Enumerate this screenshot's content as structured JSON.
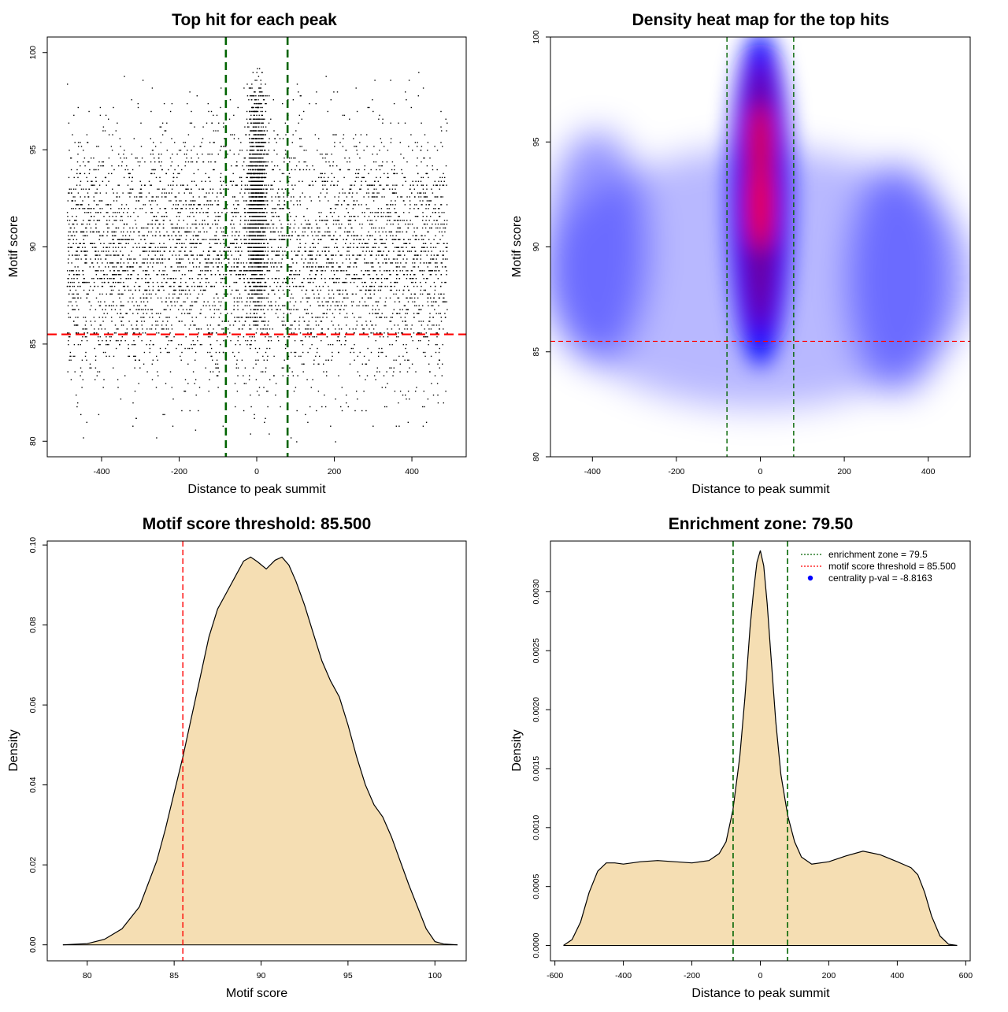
{
  "figure": {
    "background": "#ffffff",
    "colors": {
      "green_line": "#006400",
      "red_line": "#ff0000",
      "fill": "#f5deb3",
      "point": "#000000",
      "heat_low": "#ffffff",
      "heat_mid": "#0000ff",
      "heat_high": "#ff0000",
      "legend_dot": "#0000ff"
    }
  },
  "chart_data": [
    {
      "id": "scatter",
      "type": "scatter",
      "title": "Top hit for each peak",
      "xlabel": "Distance to peak summit",
      "ylabel": "Motif score",
      "xlim": [
        -540,
        540
      ],
      "ylim": [
        79.2,
        100.8
      ],
      "xticks": [
        "-400",
        "-200",
        "0",
        "200",
        "400"
      ],
      "yticks": [
        "80",
        "85",
        "90",
        "95",
        "100"
      ],
      "points_summary": {
        "background_x_range": [
          -490,
          490
        ],
        "background_score_center": 89.5,
        "background_score_sd": 3.3,
        "central_cluster_x_range": [
          -35,
          35
        ],
        "central_cluster_score_center": 92.5,
        "central_cluster_score_sd": 3.0,
        "max_score": 99.3,
        "min_score": 80
      },
      "vlines": [
        -79.5,
        79.5
      ],
      "hline": 85.5
    },
    {
      "id": "heatmap",
      "type": "heatmap",
      "title": "Density heat map for the top hits",
      "xlabel": "Distance to peak summit",
      "ylabel": "Motif score",
      "xlim": [
        -500,
        500
      ],
      "ylim": [
        80,
        100
      ],
      "xticks": [
        "-400",
        "-200",
        "0",
        "200",
        "400"
      ],
      "yticks": [
        "80",
        "85",
        "90",
        "95",
        "100"
      ],
      "density_peaks": [
        {
          "x": 0,
          "score": 92,
          "relative_density": 1.0
        },
        {
          "x": 0,
          "score": 95,
          "relative_density": 0.85
        },
        {
          "x": -390,
          "score": 90,
          "relative_density": 0.3
        },
        {
          "x": 330,
          "score": 88.5,
          "relative_density": 0.3
        }
      ],
      "vlines": [
        -79.5,
        79.5
      ],
      "hline": 85.5
    },
    {
      "id": "score-density",
      "type": "area",
      "title": "Motif score threshold: 85.500",
      "xlabel": "Motif score",
      "ylabel": "Density",
      "xlim": [
        77.7,
        101.8
      ],
      "ylim": [
        -0.004,
        0.101
      ],
      "xticks": [
        "80",
        "85",
        "90",
        "95",
        "100"
      ],
      "yticks": [
        "0.00",
        "0.02",
        "0.04",
        "0.06",
        "0.08",
        "0.10"
      ],
      "x": [
        78.6,
        80,
        81,
        82,
        83,
        84,
        84.5,
        85,
        85.5,
        86,
        86.5,
        87,
        87.5,
        88,
        88.5,
        89,
        89.4,
        89.8,
        90.3,
        90.8,
        91.2,
        91.6,
        92,
        92.5,
        93,
        93.5,
        94,
        94.5,
        95,
        95.5,
        96,
        96.5,
        97,
        97.5,
        98,
        98.5,
        99,
        99.5,
        100,
        100.5,
        101.3
      ],
      "y": [
        0,
        0.0003,
        0.0014,
        0.004,
        0.0095,
        0.021,
        0.029,
        0.038,
        0.047,
        0.057,
        0.067,
        0.077,
        0.084,
        0.088,
        0.092,
        0.096,
        0.097,
        0.0958,
        0.094,
        0.0962,
        0.097,
        0.095,
        0.091,
        0.085,
        0.078,
        0.071,
        0.066,
        0.062,
        0.055,
        0.047,
        0.04,
        0.035,
        0.032,
        0.027,
        0.021,
        0.015,
        0.0095,
        0.004,
        0.0008,
        0.0002,
        0
      ],
      "vline": 85.5
    },
    {
      "id": "distance-density",
      "type": "area",
      "title": "Enrichment zone: 79.50",
      "xlabel": "Distance to peak summit",
      "ylabel": "Density",
      "xlim": [
        -613,
        613
      ],
      "ylim": [
        -0.00013,
        0.00343
      ],
      "xticks": [
        "-600",
        "-400",
        "-200",
        "0",
        "200",
        "400",
        "600"
      ],
      "yticks": [
        "0.0000",
        "0.0005",
        "0.0010",
        "0.0015",
        "0.0020",
        "0.0025",
        "0.0030"
      ],
      "x": [
        -575,
        -550,
        -525,
        -500,
        -475,
        -450,
        -425,
        -400,
        -350,
        -300,
        -250,
        -200,
        -150,
        -120,
        -100,
        -80,
        -60,
        -45,
        -30,
        -20,
        -10,
        0,
        10,
        20,
        30,
        45,
        60,
        80,
        100,
        120,
        150,
        200,
        250,
        300,
        350,
        400,
        440,
        460,
        480,
        500,
        525,
        550,
        575
      ],
      "y": [
        0,
        5e-05,
        0.0002,
        0.00045,
        0.00063,
        0.0007,
        0.0007,
        0.00069,
        0.00071,
        0.00072,
        0.00071,
        0.0007,
        0.00072,
        0.00078,
        0.00088,
        0.00115,
        0.0016,
        0.0021,
        0.0027,
        0.003,
        0.00325,
        0.00335,
        0.00322,
        0.0029,
        0.0025,
        0.0019,
        0.00145,
        0.0011,
        0.00088,
        0.00075,
        0.00069,
        0.00071,
        0.00076,
        0.0008,
        0.00077,
        0.00071,
        0.00066,
        0.0006,
        0.00045,
        0.00025,
        8e-05,
        1e-05,
        0
      ],
      "vlines": [
        -79.5,
        79.5
      ],
      "legend": {
        "position": "top-right",
        "items": [
          {
            "label": "enrichment zone = 79.5",
            "style": "dotted",
            "color": "#006400"
          },
          {
            "label": "motif score threshold = 85.500",
            "style": "dotted",
            "color": "#ff0000"
          },
          {
            "label": "centrality p-val = -8.8163",
            "style": "dot",
            "color": "#0000ff"
          }
        ]
      }
    }
  ]
}
